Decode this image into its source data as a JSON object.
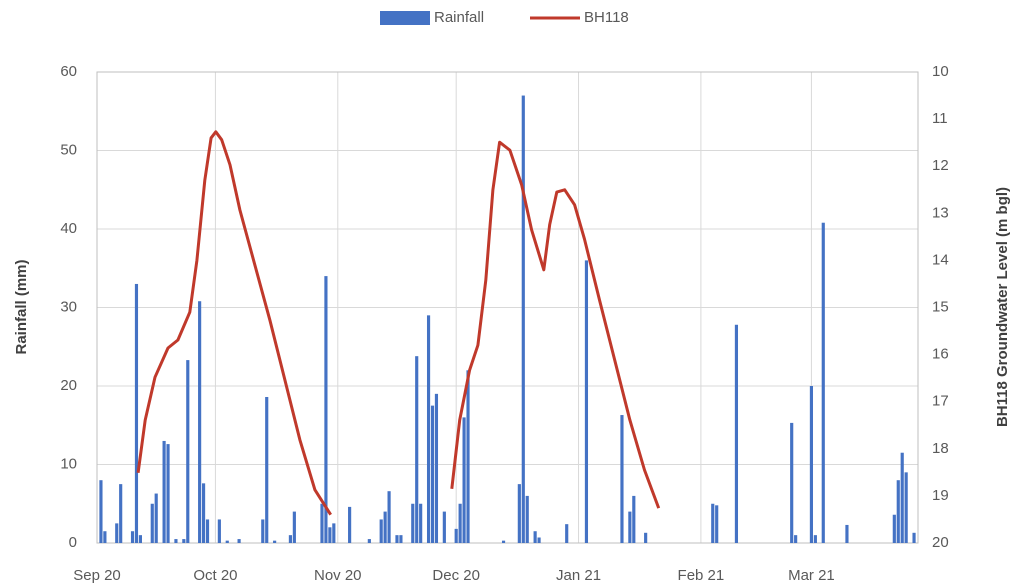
{
  "chart_data": {
    "type": "combo",
    "xlim": [
      0,
      208
    ],
    "xticks": [
      {
        "value": 0,
        "label": "Sep 20"
      },
      {
        "value": 30,
        "label": "Oct 20"
      },
      {
        "value": 61,
        "label": "Nov 20"
      },
      {
        "value": 91,
        "label": "Dec 20"
      },
      {
        "value": 122,
        "label": "Jan 21"
      },
      {
        "value": 153,
        "label": "Feb 21"
      },
      {
        "value": 181,
        "label": "Mar 21"
      }
    ],
    "ylabel": "Rainfall  (mm)",
    "ylim": [
      0,
      60
    ],
    "yticks": [
      0,
      10,
      20,
      30,
      40,
      50,
      60
    ],
    "y2label": "BH118 Groundwater Level (m bgl)",
    "y2lim": [
      20,
      10
    ],
    "y2ticks": [
      10,
      11,
      12,
      13,
      14,
      15,
      16,
      17,
      18,
      19,
      20
    ],
    "grid": true,
    "legend": "top",
    "series": [
      {
        "name": "Rainfall",
        "type": "bar",
        "color": "#4472c4",
        "x": [
          1,
          2,
          5,
          6,
          9,
          10,
          11,
          14,
          15,
          17,
          18,
          20,
          22,
          23,
          26,
          27,
          28,
          31,
          33,
          36,
          42,
          43,
          45,
          49,
          50,
          57,
          58,
          59,
          60,
          64,
          69,
          72,
          73,
          74,
          76,
          77,
          80,
          81,
          82,
          84,
          85,
          86,
          88,
          91,
          92,
          93,
          94,
          103,
          107,
          108,
          109,
          111,
          112,
          119,
          124,
          133,
          135,
          136,
          139,
          156,
          157,
          162,
          176,
          177,
          181,
          182,
          184,
          190,
          202,
          203,
          204,
          205,
          207
        ],
        "values": [
          8,
          1.5,
          2.5,
          7.5,
          1.5,
          33,
          1,
          5,
          6.3,
          13,
          12.6,
          0.5,
          0.5,
          23.3,
          30.8,
          7.6,
          3,
          3,
          0.3,
          0.5,
          3,
          18.6,
          0.3,
          1,
          4,
          5,
          34,
          2,
          2.5,
          4.6,
          0.5,
          3,
          4,
          6.6,
          1,
          1,
          5,
          23.8,
          5,
          29,
          17.5,
          19,
          4,
          1.8,
          5,
          16,
          22,
          0.3,
          7.5,
          57,
          6,
          1.5,
          0.7,
          2.4,
          36,
          16.3,
          4,
          6,
          1.3,
          5,
          4.8,
          27.8,
          15.3,
          1,
          20,
          1,
          40.8,
          2.3,
          3.6,
          8,
          11.5,
          9,
          1.3
        ]
      },
      {
        "name": "BH118",
        "type": "line",
        "axis": "y2",
        "color": "#c0392b",
        "x": [
          10.4,
          12.2,
          14.7,
          18,
          20.5,
          23.5,
          25.3,
          27.3,
          28.9,
          30.1,
          31.6,
          33.7,
          36.2,
          40,
          43.8,
          47.6,
          51.4,
          55.2,
          59.2,
          75,
          89.9,
          91.9,
          94.4,
          96.5,
          98.5,
          100.3,
          102,
          104.6,
          107.6,
          110.1,
          113.2,
          114.7,
          116.5,
          118.5,
          121,
          123.5,
          127.3,
          131.1,
          135,
          138.7,
          142.3
        ],
        "values": [
          18.51,
          17.39,
          16.48,
          15.86,
          15.69,
          15.1,
          14.0,
          12.3,
          11.4,
          11.27,
          11.44,
          11.97,
          12.93,
          14.1,
          15.27,
          16.54,
          17.81,
          18.87,
          19.4,
          null,
          18.85,
          17.39,
          16.33,
          15.8,
          14.42,
          12.5,
          11.49,
          11.66,
          12.4,
          13.35,
          14.2,
          13.24,
          12.55,
          12.5,
          12.82,
          13.55,
          14.84,
          16.1,
          17.39,
          18.45,
          19.26
        ]
      }
    ]
  }
}
